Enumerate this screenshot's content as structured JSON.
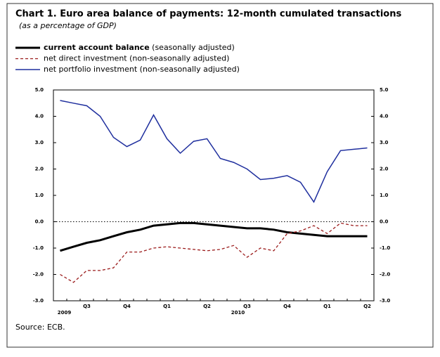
{
  "chart_data": {
    "type": "line",
    "title": "Chart 1. Euro area balance of payments: 12-month cumulated transactions",
    "subtitle": "(as a percentage of GDP)",
    "source": "Source: ECB.",
    "categories": [
      null,
      null,
      "Q3",
      null,
      null,
      "Q4",
      null,
      null,
      "Q1",
      null,
      null,
      "Q2",
      null,
      null,
      "Q3",
      null,
      null,
      "Q4",
      null,
      null,
      "Q1",
      null,
      null,
      "Q2"
    ],
    "year_labels": [
      "2009",
      null,
      null,
      null,
      null,
      null,
      null,
      null,
      null,
      null,
      null,
      null,
      null,
      "2010",
      null,
      null,
      null,
      null,
      null,
      null,
      null,
      null,
      null,
      null
    ],
    "series": [
      {
        "name": "current account balance",
        "qualifier": "(seasonally adjusted)",
        "color": "#000000",
        "dash": "solid",
        "width": 3,
        "values": [
          -1.1,
          -0.95,
          -0.8,
          -0.7,
          -0.55,
          -0.4,
          -0.3,
          -0.15,
          -0.1,
          -0.05,
          -0.05,
          -0.1,
          -0.15,
          -0.2,
          -0.25,
          -0.25,
          -0.3,
          -0.4,
          -0.45,
          -0.5,
          -0.55,
          -0.55,
          -0.55,
          -0.55
        ]
      },
      {
        "name": "net direct investment",
        "qualifier": "(non-seasonally adjusted)",
        "color": "#9b1b1b",
        "dash": "dashed",
        "width": 1.3,
        "values": [
          -2.0,
          -2.3,
          -1.85,
          -1.85,
          -1.75,
          -1.15,
          -1.15,
          -1.0,
          -0.95,
          -1.0,
          -1.05,
          -1.1,
          -1.05,
          -0.9,
          -1.35,
          -1.0,
          -1.1,
          -0.45,
          -0.35,
          -0.15,
          -0.45,
          -0.05,
          -0.15,
          -0.15
        ]
      },
      {
        "name": "net portfolio investment",
        "qualifier": "(non-seasonally adjusted)",
        "color": "#1f2f9e",
        "dash": "solid",
        "width": 1.5,
        "values": [
          4.6,
          4.5,
          4.4,
          4.0,
          3.2,
          2.85,
          3.1,
          4.05,
          3.15,
          2.6,
          3.05,
          3.15,
          2.4,
          2.25,
          2.0,
          1.6,
          1.65,
          1.75,
          1.5,
          0.75,
          1.9,
          2.7,
          2.75,
          2.8
        ]
      }
    ],
    "ylim": [
      -3,
      5
    ],
    "yticks": [
      {
        "value": -3,
        "label": "-3.0"
      },
      {
        "value": -2,
        "label": "-2.0"
      },
      {
        "value": -1,
        "label": "-1.0"
      },
      {
        "value": 0,
        "label": "0.0"
      },
      {
        "value": 1,
        "label": "1.0"
      },
      {
        "value": 2,
        "label": "2.0"
      },
      {
        "value": 3,
        "label": "3.0"
      },
      {
        "value": 4,
        "label": "4.0"
      },
      {
        "value": 5,
        "label": "5.0"
      }
    ],
    "y2lim": [
      -3,
      5
    ],
    "y2ticks": [
      {
        "value": -3,
        "label": "-3.0"
      },
      {
        "value": -2,
        "label": "-2.0"
      },
      {
        "value": -1,
        "label": "-1.0"
      },
      {
        "value": 0,
        "label": "0.0"
      },
      {
        "value": 1,
        "label": "1.0"
      },
      {
        "value": 2,
        "label": "2.0"
      },
      {
        "value": 3,
        "label": "3.0"
      },
      {
        "value": 4,
        "label": "4.0"
      },
      {
        "value": 5,
        "label": "5.0"
      }
    ],
    "zero_line": true
  }
}
